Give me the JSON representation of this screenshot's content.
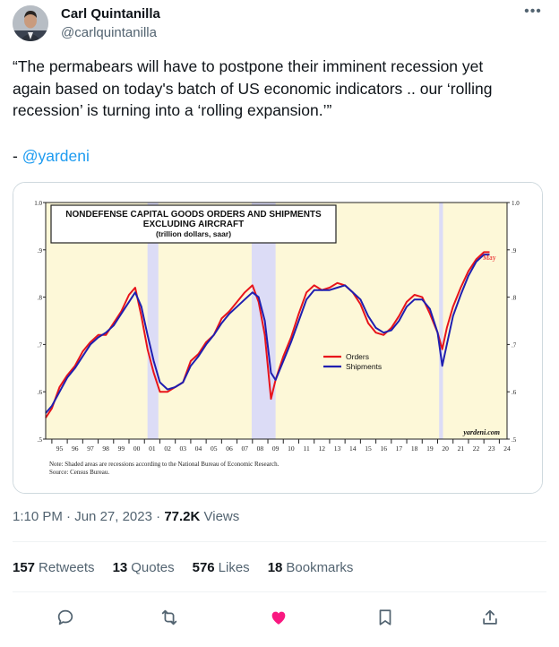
{
  "author": {
    "display_name": "Carl Quintanilla",
    "handle": "@carlquintanilla"
  },
  "tweet": {
    "lines": [
      "“The permabears will have to postpone their imminent recession yet",
      "again based on today's batch of US economic indicators .. our ‘rolling",
      "recession’ is turning into a ‘rolling expansion.’”"
    ],
    "signature_prefix": "- ",
    "mention": "@yardeni"
  },
  "meta": {
    "time": "1:10 PM",
    "date": "Jun 27, 2023",
    "views_count": "77.2K",
    "views_label": "Views"
  },
  "stats": [
    {
      "count": "157",
      "label": "Retweets"
    },
    {
      "count": "13",
      "label": "Quotes"
    },
    {
      "count": "576",
      "label": "Likes"
    },
    {
      "count": "18",
      "label": "Bookmarks"
    }
  ],
  "colors": {
    "link": "#1d9bf0",
    "like": "#f91880",
    "orders": "#e8141b",
    "shipments": "#1f1fb0",
    "chart_bg": "#fdf8d8",
    "recession": "#dcdcf6"
  },
  "icons": [
    "more-icon",
    "reply-icon",
    "retweet-icon",
    "like-icon",
    "bookmark-icon",
    "share-icon"
  ],
  "chart_data": {
    "type": "line",
    "title": "NONDEFENSE CAPITAL GOODS ORDERS AND SHIPMENTS",
    "title_line2": "EXCLUDING AIRCRAFT",
    "subtitle": "(trillion dollars, saar)",
    "x_labels": [
      "95",
      "96",
      "97",
      "98",
      "99",
      "00",
      "01",
      "02",
      "03",
      "04",
      "05",
      "06",
      "07",
      "08",
      "09",
      "10",
      "11",
      "12",
      "13",
      "14",
      "15",
      "16",
      "17",
      "18",
      "19",
      "20",
      "21",
      "22",
      "23",
      "24"
    ],
    "y_ticks": [
      "1.0",
      ".9",
      ".8",
      ".7",
      ".6",
      ".5"
    ],
    "y_ticks_right": [
      "1.0",
      ".9",
      ".8",
      ".7",
      ".6",
      ".5"
    ],
    "ylim": [
      0.5,
      1.0
    ],
    "xlim": [
      1994.6,
      2024.5
    ],
    "recessions": [
      [
        2001.2,
        2001.9
      ],
      [
        2007.95,
        2009.5
      ],
      [
        2020.1,
        2020.35
      ]
    ],
    "annotation_end": "May",
    "watermark": "yardeni.com",
    "note": "Note: Shaded areas are recessions according to the National Bureau of Economic Research.",
    "source": "Source: Census Bureau.",
    "series": [
      {
        "name": "Orders",
        "x": [
          1994.6,
          1995.0,
          1995.5,
          1996.0,
          1996.5,
          1997.0,
          1997.5,
          1998.0,
          1998.5,
          1999.0,
          1999.5,
          2000.0,
          2000.4,
          2000.8,
          2001.2,
          2001.6,
          2002.0,
          2002.5,
          2003.0,
          2003.5,
          2004.0,
          2004.5,
          2005.0,
          2005.5,
          2006.0,
          2006.5,
          2007.0,
          2007.5,
          2008.0,
          2008.4,
          2008.8,
          2009.2,
          2009.5,
          2010.0,
          2010.5,
          2011.0,
          2011.5,
          2012.0,
          2012.5,
          2013.0,
          2013.5,
          2014.0,
          2014.5,
          2015.0,
          2015.5,
          2016.0,
          2016.5,
          2017.0,
          2017.5,
          2018.0,
          2018.5,
          2019.0,
          2019.5,
          2020.0,
          2020.3,
          2020.6,
          2021.0,
          2021.5,
          2022.0,
          2022.5,
          2023.0,
          2023.37
        ],
        "values": [
          0.545,
          0.565,
          0.61,
          0.635,
          0.655,
          0.685,
          0.705,
          0.72,
          0.72,
          0.745,
          0.77,
          0.805,
          0.82,
          0.76,
          0.69,
          0.64,
          0.6,
          0.6,
          0.61,
          0.62,
          0.665,
          0.68,
          0.705,
          0.72,
          0.755,
          0.77,
          0.79,
          0.81,
          0.825,
          0.79,
          0.72,
          0.585,
          0.625,
          0.675,
          0.715,
          0.765,
          0.81,
          0.825,
          0.815,
          0.82,
          0.83,
          0.825,
          0.81,
          0.785,
          0.745,
          0.725,
          0.72,
          0.735,
          0.76,
          0.79,
          0.805,
          0.8,
          0.765,
          0.725,
          0.69,
          0.735,
          0.78,
          0.82,
          0.855,
          0.88,
          0.895,
          0.895
        ]
      },
      {
        "name": "Shipments",
        "x": [
          1994.6,
          1995.0,
          1995.5,
          1996.0,
          1996.5,
          1997.0,
          1997.5,
          1998.0,
          1998.5,
          1999.0,
          1999.5,
          2000.0,
          2000.4,
          2000.8,
          2001.2,
          2001.6,
          2002.0,
          2002.5,
          2003.0,
          2003.5,
          2004.0,
          2004.5,
          2005.0,
          2005.5,
          2006.0,
          2006.5,
          2007.0,
          2007.5,
          2008.0,
          2008.4,
          2008.8,
          2009.2,
          2009.5,
          2010.0,
          2010.5,
          2011.0,
          2011.5,
          2012.0,
          2012.5,
          2013.0,
          2013.5,
          2014.0,
          2014.5,
          2015.0,
          2015.5,
          2016.0,
          2016.5,
          2017.0,
          2017.5,
          2018.0,
          2018.5,
          2019.0,
          2019.5,
          2020.0,
          2020.3,
          2020.6,
          2021.0,
          2021.5,
          2022.0,
          2022.5,
          2023.0,
          2023.37
        ],
        "values": [
          0.555,
          0.57,
          0.6,
          0.63,
          0.65,
          0.675,
          0.7,
          0.715,
          0.725,
          0.74,
          0.765,
          0.79,
          0.81,
          0.78,
          0.72,
          0.665,
          0.62,
          0.605,
          0.61,
          0.62,
          0.655,
          0.675,
          0.7,
          0.72,
          0.745,
          0.765,
          0.78,
          0.795,
          0.81,
          0.8,
          0.75,
          0.64,
          0.625,
          0.665,
          0.705,
          0.75,
          0.795,
          0.815,
          0.815,
          0.815,
          0.82,
          0.825,
          0.81,
          0.795,
          0.76,
          0.735,
          0.725,
          0.73,
          0.75,
          0.78,
          0.795,
          0.795,
          0.775,
          0.725,
          0.655,
          0.7,
          0.76,
          0.805,
          0.845,
          0.875,
          0.89,
          0.89
        ]
      }
    ]
  }
}
